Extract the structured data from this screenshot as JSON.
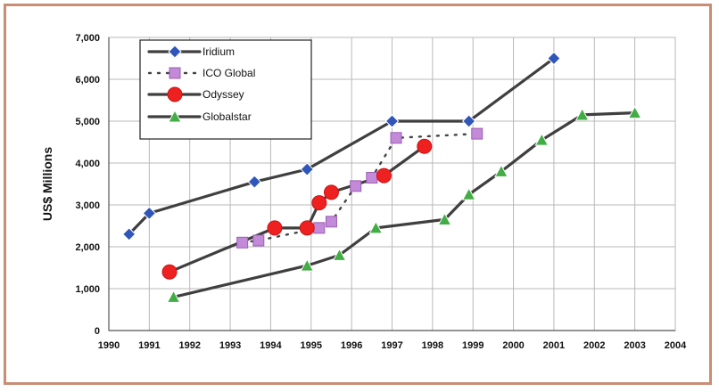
{
  "chart_data": {
    "type": "line",
    "title": "",
    "xlabel": "",
    "ylabel": "US$ Millions",
    "xlim": [
      1990,
      2004
    ],
    "ylim": [
      0,
      7000
    ],
    "x_ticks": [
      "1990",
      "1991",
      "1992",
      "1993",
      "1994",
      "1995",
      "1996",
      "1997",
      "1998",
      "1999",
      "2000",
      "2001",
      "2002",
      "2003",
      "2004"
    ],
    "y_ticks": [
      "0",
      "1,000",
      "2,000",
      "3,000",
      "4,000",
      "5,000",
      "6,000",
      "7,000"
    ],
    "grid": true,
    "legend_position": "top-left",
    "series": [
      {
        "name": "Iridium",
        "color": "#2f56b8",
        "marker": "diamond",
        "line_style": "solid",
        "points": [
          [
            1990.5,
            2300
          ],
          [
            1991.0,
            2800
          ],
          [
            1993.6,
            3550
          ],
          [
            1994.9,
            3850
          ],
          [
            1997.0,
            5000
          ],
          [
            1998.9,
            5000
          ],
          [
            2001.0,
            6500
          ]
        ]
      },
      {
        "name": "ICO Global",
        "color": "#c28ad8",
        "marker": "square",
        "line_style": "dotted",
        "points": [
          [
            1993.3,
            2100
          ],
          [
            1993.7,
            2150
          ],
          [
            1995.2,
            2450
          ],
          [
            1995.5,
            2600
          ],
          [
            1996.1,
            3450
          ],
          [
            1996.5,
            3650
          ],
          [
            1997.1,
            4600
          ],
          [
            1999.1,
            4700
          ]
        ]
      },
      {
        "name": "Odyssey",
        "color": "#ef2020",
        "marker": "circle",
        "line_style": "solid",
        "points": [
          [
            1991.5,
            1400
          ],
          [
            1994.1,
            2450
          ],
          [
            1994.9,
            2450
          ],
          [
            1995.2,
            3050
          ],
          [
            1995.5,
            3300
          ],
          [
            1996.8,
            3700
          ],
          [
            1997.8,
            4400
          ]
        ]
      },
      {
        "name": "Globalstar",
        "color": "#42ad45",
        "marker": "triangle",
        "line_style": "solid",
        "points": [
          [
            1991.6,
            800
          ],
          [
            1994.9,
            1550
          ],
          [
            1995.7,
            1800
          ],
          [
            1996.6,
            2450
          ],
          [
            1998.3,
            2650
          ],
          [
            1998.9,
            3250
          ],
          [
            1999.7,
            3800
          ],
          [
            2000.7,
            4550
          ],
          [
            2001.7,
            5150
          ],
          [
            2003.0,
            5200
          ]
        ]
      }
    ]
  }
}
